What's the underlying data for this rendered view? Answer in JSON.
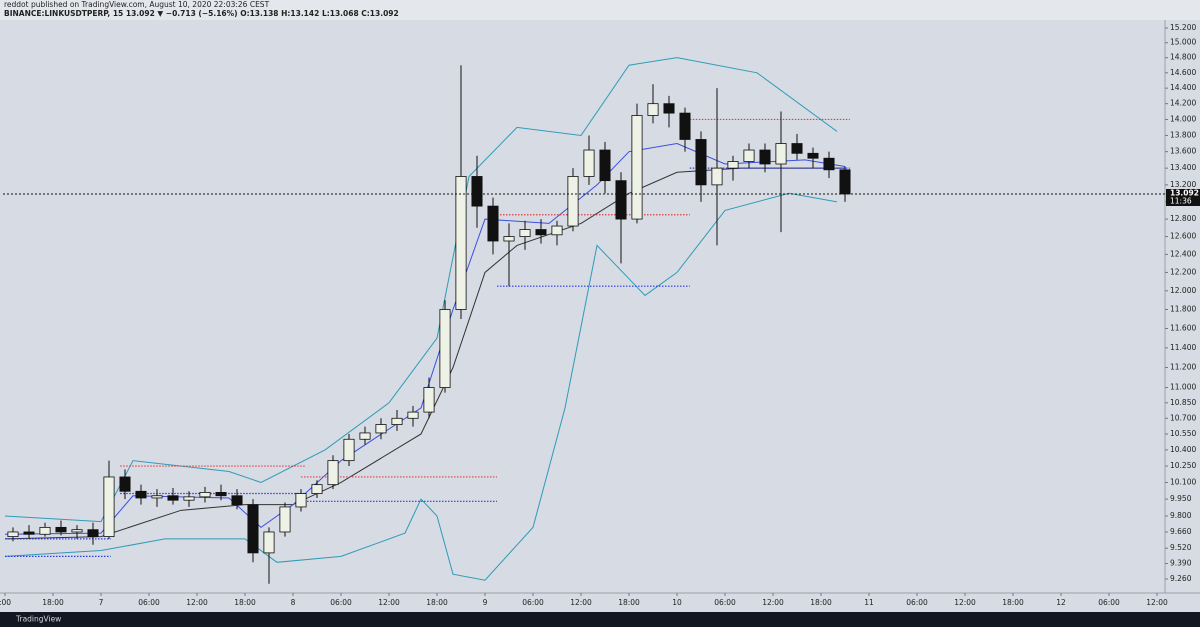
{
  "chart_data": {
    "type": "candlestick",
    "title": "reddot published on TradingView.com, August 10, 2020 22:03:26 CEST",
    "subtitle": "BINANCE:LINKUSDTPERP, 15  13.092 ▼ −0.713 (−5.16%)  O:13.138 H:13.142 L:13.068 C:13.092",
    "footer": "TradingView",
    "log_scale": true,
    "candle_hours": 2,
    "up_color": "#eef1e6",
    "down_color": "#111111",
    "x": [
      -12,
      -10,
      -8,
      -6,
      -4,
      -2,
      0,
      2,
      4,
      6,
      8,
      10,
      12,
      14,
      16,
      18,
      20,
      22,
      24,
      26,
      28,
      30,
      32,
      34,
      36,
      38,
      40,
      42,
      44,
      46,
      48,
      50,
      52,
      54,
      56,
      58,
      60,
      62,
      64,
      66,
      68,
      70,
      72,
      74,
      76,
      78,
      80,
      82,
      84,
      86,
      88,
      90,
      92
    ],
    "open": [
      9.62,
      9.66,
      9.64,
      9.7,
      9.66,
      9.68,
      9.62,
      10.15,
      10.02,
      9.96,
      9.98,
      9.94,
      9.97,
      10.01,
      9.98,
      9.9,
      9.48,
      9.66,
      9.88,
      10.0,
      10.08,
      10.3,
      10.5,
      10.56,
      10.64,
      10.7,
      10.76,
      11.0,
      11.8,
      13.3,
      12.95,
      12.55,
      12.6,
      12.68,
      12.62,
      12.72,
      13.3,
      13.62,
      13.25,
      12.8,
      14.05,
      14.2,
      14.08,
      13.75,
      13.2,
      13.4,
      13.48,
      13.62,
      13.45,
      13.7,
      13.58,
      13.52,
      13.38
    ],
    "high": [
      9.7,
      9.72,
      9.74,
      9.76,
      9.72,
      9.74,
      10.3,
      10.22,
      10.08,
      10.04,
      10.05,
      10.02,
      10.06,
      10.08,
      10.04,
      9.95,
      9.7,
      9.92,
      10.04,
      10.12,
      10.35,
      10.55,
      10.62,
      10.7,
      10.78,
      10.82,
      11.1,
      11.9,
      14.7,
      13.55,
      13.05,
      12.75,
      12.78,
      12.8,
      12.78,
      13.4,
      13.8,
      13.72,
      13.35,
      14.2,
      14.45,
      14.3,
      14.15,
      13.85,
      14.4,
      13.55,
      13.7,
      13.7,
      14.1,
      13.82,
      13.65,
      13.6,
      13.42
    ],
    "low": [
      9.58,
      9.6,
      9.62,
      9.63,
      9.6,
      9.55,
      9.6,
      9.95,
      9.9,
      9.88,
      9.9,
      9.88,
      9.92,
      9.94,
      9.86,
      9.4,
      9.22,
      9.62,
      9.84,
      9.96,
      10.04,
      10.25,
      10.45,
      10.5,
      10.58,
      10.62,
      10.7,
      10.95,
      11.7,
      12.7,
      12.4,
      12.05,
      12.45,
      12.52,
      12.5,
      12.66,
      13.2,
      13.1,
      12.3,
      12.75,
      13.95,
      13.9,
      13.6,
      13.0,
      12.5,
      13.25,
      13.4,
      13.35,
      12.65,
      13.5,
      13.4,
      13.28,
      13.0
    ],
    "close": [
      9.66,
      9.64,
      9.7,
      9.66,
      9.68,
      9.62,
      10.15,
      10.02,
      9.96,
      9.98,
      9.94,
      9.97,
      10.01,
      9.98,
      9.9,
      9.48,
      9.66,
      9.88,
      10.0,
      10.08,
      10.3,
      10.5,
      10.56,
      10.64,
      10.7,
      10.76,
      11.0,
      11.8,
      13.3,
      12.95,
      12.55,
      12.6,
      12.68,
      12.62,
      12.72,
      13.3,
      13.62,
      13.25,
      12.8,
      14.05,
      14.2,
      14.08,
      13.75,
      13.2,
      13.4,
      13.48,
      13.62,
      13.45,
      13.7,
      13.58,
      13.52,
      13.38,
      13.092
    ],
    "overlays": [
      {
        "color": "#2e9bb8",
        "x": [
          -12,
          0,
          4,
          16,
          20,
          28,
          36,
          42,
          46,
          52,
          60,
          66,
          72,
          82,
          92
        ],
        "values": [
          9.8,
          9.75,
          10.3,
          10.2,
          10.1,
          10.4,
          10.85,
          11.5,
          13.3,
          13.9,
          13.8,
          14.7,
          14.8,
          14.6,
          13.85
        ]
      },
      {
        "color": "#2e9bb8",
        "x": [
          -12,
          0,
          8,
          18,
          22,
          30,
          38,
          40,
          42,
          44,
          48,
          54,
          58,
          62,
          68,
          72,
          78,
          86,
          92
        ],
        "values": [
          9.45,
          9.5,
          9.6,
          9.6,
          9.4,
          9.45,
          9.65,
          9.95,
          9.8,
          9.3,
          9.25,
          9.7,
          10.8,
          12.5,
          11.95,
          12.2,
          12.9,
          13.1,
          13.0
        ]
      },
      {
        "color": "#333333",
        "x": [
          -12,
          0,
          10,
          18,
          24,
          30,
          40,
          44,
          48,
          52,
          60,
          66,
          72,
          80,
          93
        ],
        "values": [
          9.6,
          9.62,
          9.85,
          9.9,
          9.9,
          10.1,
          10.55,
          11.2,
          12.2,
          12.5,
          12.75,
          13.1,
          13.35,
          13.4,
          13.4
        ]
      },
      {
        "color": "#3b4fe0",
        "x": [
          -12,
          0,
          4,
          16,
          20,
          24,
          30,
          40,
          44,
          48,
          56,
          62,
          66,
          72,
          78,
          88,
          93
        ],
        "values": [
          9.64,
          9.65,
          9.98,
          9.96,
          9.7,
          9.9,
          10.3,
          10.8,
          11.8,
          12.8,
          12.75,
          13.2,
          13.6,
          13.7,
          13.45,
          13.5,
          13.42
        ]
      }
    ],
    "levels": [
      {
        "value": 9.6,
        "x0": -12,
        "x1": 1.2,
        "color": "#2b3de0"
      },
      {
        "value": 9.45,
        "x0": -12,
        "x1": 1.2,
        "color": "#2b3de0"
      },
      {
        "value": 10.25,
        "x0": 2.4,
        "x1": 25.5,
        "color": "#e04040"
      },
      {
        "value": 10.0,
        "x0": 2.4,
        "x1": 25.5,
        "color": "#2b3de0"
      },
      {
        "value": 10.15,
        "x0": 25,
        "x1": 49.5,
        "color": "#e04040"
      },
      {
        "value": 9.93,
        "x0": 25,
        "x1": 49.5,
        "color": "#2b3de0"
      },
      {
        "value": 12.85,
        "x0": 49.5,
        "x1": 73.6,
        "color": "#e04040"
      },
      {
        "value": 12.05,
        "x0": 49.5,
        "x1": 73.6,
        "color": "#2b3de0"
      },
      {
        "value": 14.0,
        "x0": 73.6,
        "x1": 93.6,
        "color": "#e04040"
      },
      {
        "value": 13.4,
        "x0": 73.6,
        "x1": 93.6,
        "color": "#2b3de0"
      }
    ],
    "last_price": 13.092,
    "countdown": "11:36",
    "xlim": [
      -12.25,
      133
    ],
    "xticks": [
      {
        "value": -12,
        "label": ":00"
      },
      {
        "value": -6,
        "label": "18:00"
      },
      {
        "value": 0,
        "label": "7"
      },
      {
        "value": 6,
        "label": "06:00"
      },
      {
        "value": 12,
        "label": "12:00"
      },
      {
        "value": 18,
        "label": "18:00"
      },
      {
        "value": 24,
        "label": "8"
      },
      {
        "value": 30,
        "label": "06:00"
      },
      {
        "value": 36,
        "label": "12:00"
      },
      {
        "value": 42,
        "label": "18:00"
      },
      {
        "value": 48,
        "label": "9"
      },
      {
        "value": 54,
        "label": "06:00"
      },
      {
        "value": 60,
        "label": "12:00"
      },
      {
        "value": 66,
        "label": "18:00"
      },
      {
        "value": 72,
        "label": "10"
      },
      {
        "value": 78,
        "label": "06:00"
      },
      {
        "value": 84,
        "label": "12:00"
      },
      {
        "value": 90,
        "label": "18:00"
      },
      {
        "value": 96,
        "label": "11"
      },
      {
        "value": 102,
        "label": "06:00"
      },
      {
        "value": 108,
        "label": "12:00"
      },
      {
        "value": 114,
        "label": "18:00"
      },
      {
        "value": 120,
        "label": "12"
      },
      {
        "value": 126,
        "label": "06:00"
      },
      {
        "value": 132,
        "label": "12:00"
      }
    ],
    "ylim": [
      9.144,
      15.31
    ],
    "yticks": [
      {
        "value": 15.2,
        "label": "15.200"
      },
      {
        "value": 15,
        "label": "15.000"
      },
      {
        "value": 14.8,
        "label": "14.800"
      },
      {
        "value": 14.6,
        "label": "14.600"
      },
      {
        "value": 14.4,
        "label": "14.400"
      },
      {
        "value": 14.2,
        "label": "14.200"
      },
      {
        "value": 14,
        "label": "14.000"
      },
      {
        "value": 13.8,
        "label": "13.800"
      },
      {
        "value": 13.6,
        "label": "13.600"
      },
      {
        "value": 13.4,
        "label": "13.400"
      },
      {
        "value": 13.2,
        "label": "13.200"
      },
      {
        "value": 13,
        "label": "13.000"
      },
      {
        "value": 12.8,
        "label": "12.800"
      },
      {
        "value": 12.6,
        "label": "12.600"
      },
      {
        "value": 12.4,
        "label": "12.400"
      },
      {
        "value": 12.2,
        "label": "12.200"
      },
      {
        "value": 12,
        "label": "12.000"
      },
      {
        "value": 11.8,
        "label": "11.800"
      },
      {
        "value": 11.6,
        "label": "11.600"
      },
      {
        "value": 11.4,
        "label": "11.400"
      },
      {
        "value": 11.2,
        "label": "11.200"
      },
      {
        "value": 11,
        "label": "11.000"
      },
      {
        "value": 10.85,
        "label": "10.850"
      },
      {
        "value": 10.7,
        "label": "10.700"
      },
      {
        "value": 10.55,
        "label": "10.550"
      },
      {
        "value": 10.4,
        "label": "10.400"
      },
      {
        "value": 10.25,
        "label": "10.250"
      },
      {
        "value": 10.1,
        "label": "10.100"
      },
      {
        "value": 9.95,
        "label": "9.950"
      },
      {
        "value": 9.8,
        "label": "9.800"
      },
      {
        "value": 9.66,
        "label": "9.660"
      },
      {
        "value": 9.52,
        "label": "9.520"
      },
      {
        "value": 9.39,
        "label": "9.390"
      },
      {
        "value": 9.26,
        "label": "9.260"
      }
    ]
  }
}
